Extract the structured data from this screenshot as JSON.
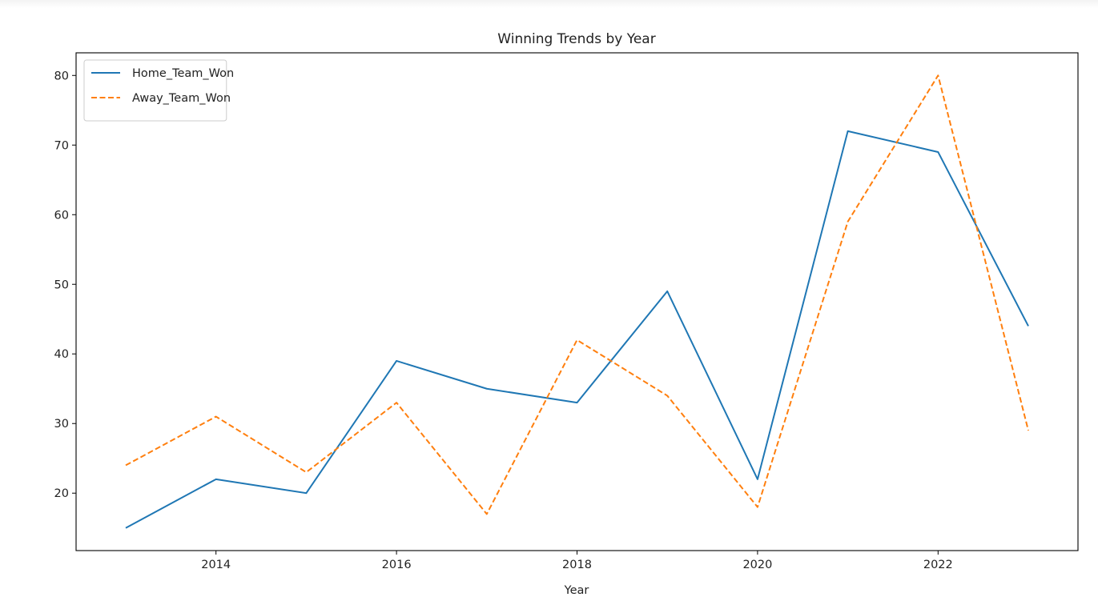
{
  "chart_data": {
    "type": "line",
    "title": "Winning Trends by Year",
    "xlabel": "Year",
    "ylabel": "",
    "x": [
      2013,
      2014,
      2015,
      2016,
      2017,
      2018,
      2019,
      2020,
      2021,
      2022,
      2023
    ],
    "xticks": [
      2014,
      2016,
      2018,
      2020,
      2022
    ],
    "yticks": [
      20,
      30,
      40,
      50,
      60,
      70,
      80
    ],
    "xlim": [
      2012.45,
      2023.55
    ],
    "ylim": [
      11.75,
      83.25
    ],
    "grid": false,
    "legend_position": "top-left",
    "series": [
      {
        "name": "Home_Team_Won",
        "color": "#1f77b4",
        "style": "solid",
        "values": [
          15,
          22,
          20,
          39,
          35,
          33,
          49,
          22,
          72,
          69,
          44
        ]
      },
      {
        "name": "Away_Team_Won",
        "color": "#ff7f0e",
        "style": "dashed",
        "values": [
          24,
          31,
          23,
          33,
          17,
          42,
          34,
          18,
          59,
          80,
          29
        ]
      }
    ]
  }
}
